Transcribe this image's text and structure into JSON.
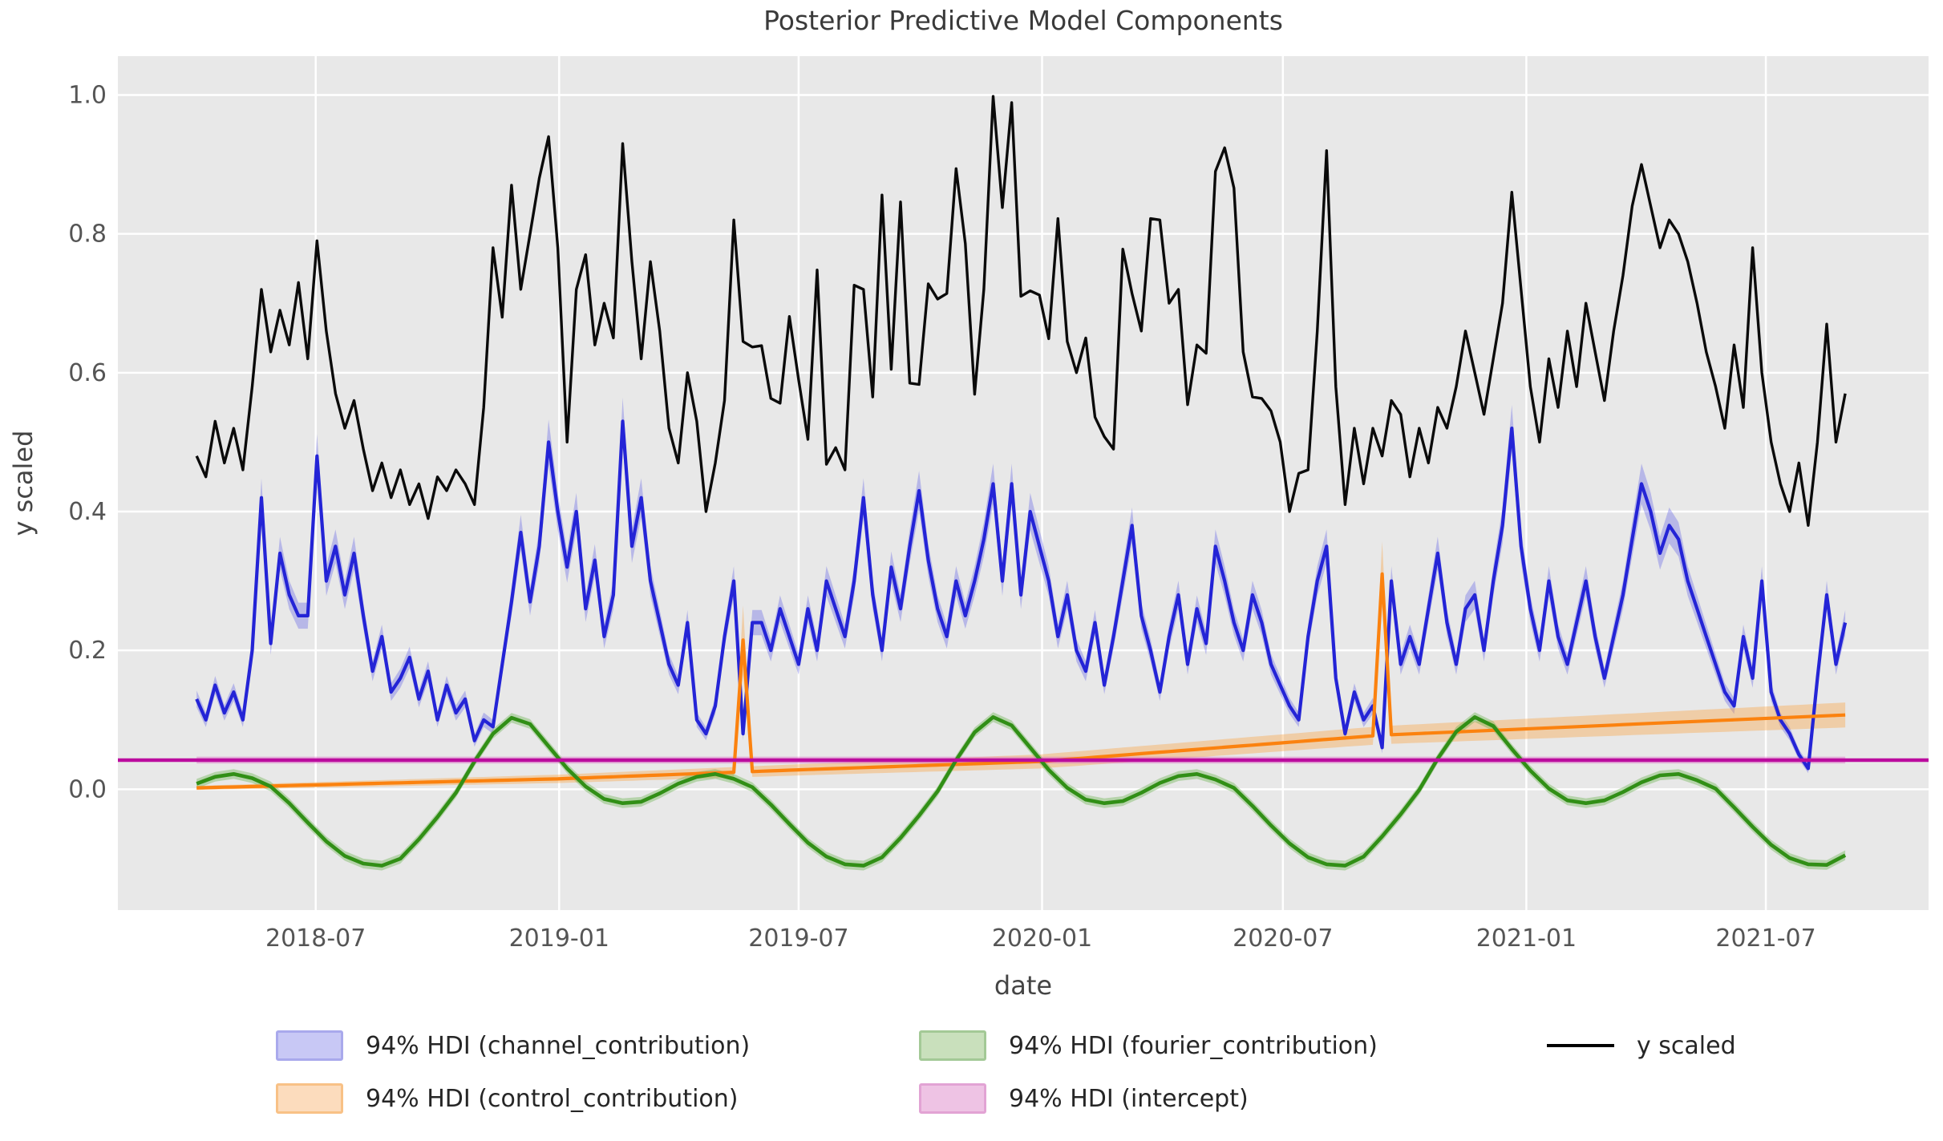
{
  "title": "Posterior Predictive Model Components",
  "axes": {
    "xlabel": "date",
    "ylabel": "y scaled",
    "x_ticks": [
      {
        "label": "2018-07",
        "week": 12.857
      },
      {
        "label": "2019-01",
        "week": 39.143
      },
      {
        "label": "2019-07",
        "week": 65.0
      },
      {
        "label": "2020-01",
        "week": 91.286
      },
      {
        "label": "2020-07",
        "week": 117.286
      },
      {
        "label": "2021-01",
        "week": 143.571
      },
      {
        "label": "2021-07",
        "week": 169.429
      }
    ],
    "y_ticks": [
      {
        "label": "0.0",
        "value": 0.0
      },
      {
        "label": "0.2",
        "value": 0.2
      },
      {
        "label": "0.4",
        "value": 0.4
      },
      {
        "label": "0.6",
        "value": 0.6
      },
      {
        "label": "0.8",
        "value": 0.8
      },
      {
        "label": "1.0",
        "value": 1.0
      }
    ],
    "xlim_weeks": [
      -8.5,
      187.0
    ],
    "ylim": [
      -0.174,
      1.056
    ],
    "grid": true,
    "background": "#e8e8e8",
    "gridline_color": "#ffffff",
    "tick_color": "#555555",
    "label_color": "#444444"
  },
  "legend": {
    "position": "below-axes, 3 columns",
    "items": [
      {
        "label": "94% HDI (channel_contribution)",
        "type": "patch",
        "fill": "#c8c8f5",
        "edge": "#a9a9ec"
      },
      {
        "label": "94% HDI (control_contribution)",
        "type": "patch",
        "fill": "#fcdcbd",
        "edge": "#f8c186"
      },
      {
        "label": "94% HDI (fourier_contribution)",
        "type": "patch",
        "fill": "#c9e0bc",
        "edge": "#a3c996"
      },
      {
        "label": "94% HDI (intercept)",
        "type": "patch",
        "fill": "#eec3e4",
        "edge": "#e2a3d4"
      },
      {
        "label": "y scaled",
        "type": "line",
        "color": "#000000"
      }
    ]
  },
  "chart_data": {
    "type": "line",
    "title": "Posterior Predictive Model Components",
    "xlabel": "date",
    "ylabel": "y scaled",
    "x_unit": "weekly observations, week 0 = 2018-04-02, last week 178 = 2021-08-30",
    "start_date": "2018-04-02",
    "end_date": "2021-08-30",
    "freq_days": 7,
    "n_points": 179,
    "series": {
      "y_scaled": {
        "legend": "y scaled",
        "color": "#0a0a0a",
        "values": [
          0.48,
          0.45,
          0.53,
          0.47,
          0.52,
          0.46,
          0.58,
          0.72,
          0.63,
          0.69,
          0.64,
          0.73,
          0.62,
          0.79,
          0.66,
          0.57,
          0.52,
          0.56,
          0.49,
          0.43,
          0.47,
          0.42,
          0.46,
          0.41,
          0.44,
          0.39,
          0.45,
          0.43,
          0.46,
          0.44,
          0.41,
          0.55,
          0.78,
          0.68,
          0.87,
          0.72,
          0.8,
          0.88,
          0.94,
          0.78,
          0.5,
          0.72,
          0.77,
          0.64,
          0.7,
          0.65,
          0.93,
          0.76,
          0.62,
          0.76,
          0.66,
          0.52,
          0.47,
          0.6,
          0.53,
          0.4,
          0.47,
          0.56,
          0.82,
          0.645,
          0.637,
          0.639,
          0.563,
          0.556,
          0.681,
          0.59,
          0.504,
          0.748,
          0.468,
          0.492,
          0.46,
          0.726,
          0.72,
          0.565,
          0.856,
          0.605,
          0.846,
          0.585,
          0.583,
          0.728,
          0.706,
          0.714,
          0.894,
          0.786,
          0.569,
          0.72,
          0.998,
          0.838,
          0.989,
          0.71,
          0.718,
          0.712,
          0.649,
          0.822,
          0.645,
          0.6,
          0.65,
          0.536,
          0.508,
          0.49,
          0.778,
          0.714,
          0.66,
          0.822,
          0.82,
          0.7,
          0.72,
          0.554,
          0.64,
          0.628,
          0.89,
          0.924,
          0.866,
          0.63,
          0.565,
          0.563,
          0.545,
          0.5,
          0.4,
          0.455,
          0.46,
          0.66,
          0.92,
          0.58,
          0.41,
          0.52,
          0.44,
          0.52,
          0.48,
          0.56,
          0.54,
          0.45,
          0.52,
          0.47,
          0.55,
          0.52,
          0.58,
          0.66,
          0.6,
          0.54,
          0.62,
          0.7,
          0.86,
          0.72,
          0.58,
          0.5,
          0.62,
          0.55,
          0.66,
          0.58,
          0.7,
          0.63,
          0.56,
          0.66,
          0.74,
          0.84,
          0.9,
          0.84,
          0.78,
          0.82,
          0.8,
          0.76,
          0.7,
          0.63,
          0.58,
          0.52,
          0.64,
          0.55,
          0.78,
          0.6,
          0.5,
          0.44,
          0.4,
          0.47,
          0.38,
          0.5,
          0.67,
          0.5,
          0.57
        ]
      },
      "channel_contribution": {
        "legend": "94% HDI (channel_contribution)",
        "line_color": "#2424d6",
        "band_color": "rgba(80,80,230,0.32)",
        "hdi_halfwidth_rule": "half = 0.005 + 0.055*mean",
        "mean": [
          0.13,
          0.1,
          0.15,
          0.11,
          0.14,
          0.1,
          0.2,
          0.42,
          0.21,
          0.34,
          0.28,
          0.25,
          0.25,
          0.48,
          0.3,
          0.35,
          0.28,
          0.34,
          0.25,
          0.17,
          0.22,
          0.14,
          0.16,
          0.19,
          0.13,
          0.17,
          0.1,
          0.15,
          0.11,
          0.13,
          0.07,
          0.1,
          0.09,
          0.18,
          0.27,
          0.37,
          0.27,
          0.35,
          0.5,
          0.4,
          0.32,
          0.4,
          0.26,
          0.33,
          0.22,
          0.28,
          0.53,
          0.35,
          0.42,
          0.3,
          0.24,
          0.18,
          0.15,
          0.24,
          0.1,
          0.08,
          0.12,
          0.22,
          0.3,
          0.08,
          0.24,
          0.24,
          0.2,
          0.26,
          0.22,
          0.18,
          0.26,
          0.2,
          0.3,
          0.26,
          0.22,
          0.3,
          0.42,
          0.28,
          0.2,
          0.32,
          0.26,
          0.35,
          0.43,
          0.33,
          0.26,
          0.22,
          0.3,
          0.25,
          0.3,
          0.36,
          0.44,
          0.3,
          0.44,
          0.28,
          0.4,
          0.35,
          0.3,
          0.22,
          0.28,
          0.2,
          0.17,
          0.24,
          0.15,
          0.22,
          0.3,
          0.38,
          0.25,
          0.2,
          0.14,
          0.22,
          0.28,
          0.18,
          0.26,
          0.21,
          0.35,
          0.3,
          0.24,
          0.2,
          0.28,
          0.24,
          0.18,
          0.15,
          0.12,
          0.1,
          0.22,
          0.3,
          0.35,
          0.16,
          0.08,
          0.14,
          0.1,
          0.12,
          0.06,
          0.3,
          0.18,
          0.22,
          0.18,
          0.26,
          0.34,
          0.24,
          0.18,
          0.26,
          0.28,
          0.2,
          0.3,
          0.38,
          0.52,
          0.35,
          0.26,
          0.2,
          0.3,
          0.22,
          0.18,
          0.24,
          0.3,
          0.22,
          0.16,
          0.22,
          0.28,
          0.36,
          0.44,
          0.4,
          0.34,
          0.38,
          0.36,
          0.3,
          0.26,
          0.22,
          0.18,
          0.14,
          0.12,
          0.22,
          0.16,
          0.3,
          0.14,
          0.1,
          0.08,
          0.05,
          0.03,
          0.16,
          0.28,
          0.18,
          0.24
        ]
      },
      "control_contribution": {
        "legend": "94% HDI (control_contribution)",
        "line_color": "#fb820f",
        "band_color": "rgba(250,160,60,0.38)",
        "trend_points": [
          [
            0,
            0.002
          ],
          [
            39,
            0.015
          ],
          [
            65,
            0.028
          ],
          [
            91,
            0.04
          ],
          [
            128,
            0.078
          ],
          [
            178,
            0.107
          ]
        ],
        "hdi_halfwidth_points": [
          [
            0,
            0.003
          ],
          [
            128,
            0.013
          ],
          [
            178,
            0.018
          ]
        ],
        "spikes": [
          {
            "week": 59,
            "date": "2019-05-20",
            "value": 0.215,
            "hdi_half": 0.05
          },
          {
            "week": 128,
            "date": "2020-09-14",
            "value": 0.31,
            "hdi_half": 0.047
          }
        ]
      },
      "fourier_contribution": {
        "legend": "94% HDI (fourier_contribution)",
        "line_color": "#318f16",
        "band_color": "rgba(100,175,70,0.38)",
        "hdi_halfwidth": 0.007,
        "points_week_value": [
          [
            0,
            0.008
          ],
          [
            2,
            0.018
          ],
          [
            4,
            0.022
          ],
          [
            6,
            0.016
          ],
          [
            8,
            0.004
          ],
          [
            10,
            -0.02
          ],
          [
            12,
            -0.048
          ],
          [
            14,
            -0.075
          ],
          [
            16,
            -0.096
          ],
          [
            18,
            -0.107
          ],
          [
            20,
            -0.11
          ],
          [
            22,
            -0.1
          ],
          [
            24,
            -0.072
          ],
          [
            26,
            -0.04
          ],
          [
            28,
            -0.005
          ],
          [
            30,
            0.04
          ],
          [
            32,
            0.08
          ],
          [
            34,
            0.103
          ],
          [
            36,
            0.094
          ],
          [
            38,
            0.062
          ],
          [
            40,
            0.03
          ],
          [
            42,
            0.004
          ],
          [
            44,
            -0.014
          ],
          [
            46,
            -0.02
          ],
          [
            48,
            -0.018
          ],
          [
            50,
            -0.006
          ],
          [
            52,
            0.008
          ],
          [
            54,
            0.018
          ],
          [
            56,
            0.022
          ],
          [
            58,
            0.015
          ],
          [
            60,
            0.003
          ],
          [
            62,
            -0.022
          ],
          [
            64,
            -0.05
          ],
          [
            66,
            -0.077
          ],
          [
            68,
            -0.097
          ],
          [
            70,
            -0.108
          ],
          [
            72,
            -0.11
          ],
          [
            74,
            -0.098
          ],
          [
            76,
            -0.07
          ],
          [
            78,
            -0.038
          ],
          [
            80,
            -0.003
          ],
          [
            82,
            0.042
          ],
          [
            84,
            0.082
          ],
          [
            86,
            0.104
          ],
          [
            88,
            0.092
          ],
          [
            90,
            0.06
          ],
          [
            92,
            0.028
          ],
          [
            94,
            0.002
          ],
          [
            96,
            -0.015
          ],
          [
            98,
            -0.02
          ],
          [
            100,
            -0.017
          ],
          [
            102,
            -0.005
          ],
          [
            104,
            0.009
          ],
          [
            106,
            0.019
          ],
          [
            108,
            0.022
          ],
          [
            110,
            0.014
          ],
          [
            112,
            0.002
          ],
          [
            114,
            -0.024
          ],
          [
            116,
            -0.052
          ],
          [
            118,
            -0.078
          ],
          [
            120,
            -0.098
          ],
          [
            122,
            -0.108
          ],
          [
            124,
            -0.11
          ],
          [
            126,
            -0.097
          ],
          [
            128,
            -0.068
          ],
          [
            130,
            -0.036
          ],
          [
            132,
            -0.001
          ],
          [
            134,
            0.044
          ],
          [
            136,
            0.083
          ],
          [
            138,
            0.104
          ],
          [
            140,
            0.091
          ],
          [
            142,
            0.058
          ],
          [
            144,
            0.027
          ],
          [
            146,
            0.001
          ],
          [
            148,
            -0.016
          ],
          [
            150,
            -0.02
          ],
          [
            152,
            -0.016
          ],
          [
            154,
            -0.004
          ],
          [
            156,
            0.01
          ],
          [
            158,
            0.02
          ],
          [
            160,
            0.022
          ],
          [
            162,
            0.013
          ],
          [
            164,
            0.001
          ],
          [
            166,
            -0.026
          ],
          [
            168,
            -0.054
          ],
          [
            170,
            -0.08
          ],
          [
            172,
            -0.099
          ],
          [
            174,
            -0.108
          ],
          [
            176,
            -0.109
          ],
          [
            178,
            -0.095
          ]
        ]
      },
      "intercept": {
        "legend": "94% HDI (intercept)",
        "line_color": "#bb0c9e",
        "band_color": "rgba(222,110,200,0.45)",
        "mean": 0.042,
        "hdi_halfwidth": 0.005,
        "line_spans_full_axis": true
      }
    }
  }
}
